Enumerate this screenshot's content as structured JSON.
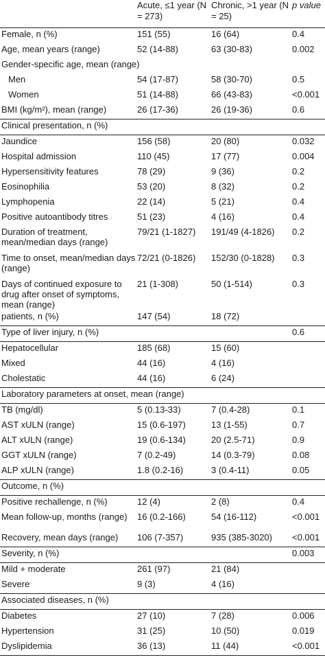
{
  "header": {
    "col1": "",
    "col2": "Acute, ≤1 year (N = 273)",
    "col3": "Chronic, >1 year (N = 25)",
    "col4": "p value"
  },
  "rows": [
    {
      "label": "Female, n (%)",
      "acute": "151 (55)",
      "chronic": "16 (64)",
      "p": "0.4"
    },
    {
      "label": "Age, mean years (range)",
      "acute": "52 (14-88)",
      "chronic": "63 (30-83)",
      "p": "0.002"
    },
    {
      "label": "Gender-specific age, mean (range)",
      "acute": "",
      "chronic": "",
      "p": ""
    },
    {
      "label": "Men",
      "acute": "54 (17-87)",
      "chronic": "58 (30-70)",
      "p": "0.5"
    },
    {
      "label": "Women",
      "acute": "51 (14-88)",
      "chronic": "66 (43-83)",
      "p": "<0.001"
    },
    {
      "label": "BMI (kg/m²), mean (range)",
      "acute": "26 (17-36)",
      "chronic": "26 (19-36)",
      "p": "0.6"
    },
    {
      "label": "Clinical presentation, n (%)",
      "acute": "",
      "chronic": "",
      "p": ""
    },
    {
      "label": "Jaundice",
      "acute": "156 (58)",
      "chronic": "20 (80)",
      "p": "0.032"
    },
    {
      "label": "Hospital admission",
      "acute": "110 (45)",
      "chronic": "17 (77)",
      "p": "0.004"
    },
    {
      "label": "Hypersensitivity features",
      "acute": "78 (29)",
      "chronic": "9 (36)",
      "p": "0.2"
    },
    {
      "label": "Eosinophilia",
      "acute": "53 (20)",
      "chronic": "8 (32)",
      "p": "0.2"
    },
    {
      "label": "Lymphopenia",
      "acute": "22 (14)",
      "chronic": "5 (21)",
      "p": "0.4"
    },
    {
      "label": "Positive autoantibody titres",
      "acute": "51 (23)",
      "chronic": "4 (16)",
      "p": "0.4"
    },
    {
      "label": "Duration of treatment, mean/median days (range)",
      "acute": "79/21 (1-1827)",
      "chronic": "191/49 (4-1826)",
      "p": "0.2"
    },
    {
      "label": "Time to onset, mean/median days (range)",
      "acute": "72/21 (0-1826)",
      "chronic": "152/30 (0-1828)",
      "p": "0.3"
    },
    {
      "label": "Days of continued exposure to drug after onset of symptoms, mean (range)",
      "acute": "21 (1-308)",
      "chronic": "50 (1-514)",
      "p": "0.3"
    },
    {
      "label": "patients, n (%)",
      "acute": "147 (54)",
      "chronic": "18 (72)",
      "p": ""
    },
    {
      "label": "Type of liver injury, n (%)",
      "acute": "",
      "chronic": "",
      "p": "0.6"
    },
    {
      "label": "Hepatocellular",
      "acute": "185 (68)",
      "chronic": "15 (60)",
      "p": ""
    },
    {
      "label": "Mixed",
      "acute": "44 (16)",
      "chronic": "4 (16)",
      "p": ""
    },
    {
      "label": "Cholestatic",
      "acute": "44 (16)",
      "chronic": "6 (24)",
      "p": ""
    },
    {
      "label": "Laboratory parameters at onset, mean (range)",
      "acute": "",
      "chronic": "",
      "p": ""
    },
    {
      "label": "TB (mg/dl)",
      "acute": "5 (0.13-33)",
      "chronic": "7 (0.4-28)",
      "p": "0.1"
    },
    {
      "label": "AST xULN (range)",
      "acute": "15 (0.6-197)",
      "chronic": "13 (1-55)",
      "p": "0.7"
    },
    {
      "label": "ALT xULN (range)",
      "acute": "19 (0.6-134)",
      "chronic": "20 (2.5-71)",
      "p": "0.9"
    },
    {
      "label": "GGT xULN (range)",
      "acute": "7 (0.2-49)",
      "chronic": "14 (0.3-79)",
      "p": "0.08"
    },
    {
      "label": "ALP xULN (range)",
      "acute": "1.8 (0.2-16)",
      "chronic": "3 (0.4-11)",
      "p": "0.05"
    },
    {
      "label": "Outcome, n (%)",
      "acute": "",
      "chronic": "",
      "p": ""
    },
    {
      "label": "Positive rechallenge, n (%)",
      "acute": "12 (4)",
      "chronic": "2 (8)",
      "p": "0.4"
    },
    {
      "label": "Mean follow-up, months (range)",
      "acute": "16 (0.2-166)",
      "chronic": "54 (16-112)",
      "p": "<0.001"
    },
    {
      "label": "Recovery, mean days (range)",
      "acute": "106 (7-357)",
      "chronic": "935 (385-3020)",
      "p": "<0.001"
    },
    {
      "label": "Severity, n (%)",
      "acute": "",
      "chronic": "",
      "p": "0.003"
    },
    {
      "label": "Mild + moderate",
      "acute": "261 (97)",
      "chronic": "21 (84)",
      "p": ""
    },
    {
      "label": "Severe",
      "acute": "9 (3)",
      "chronic": "4 (16)",
      "p": ""
    },
    {
      "label": "Associated diseases, n (%)",
      "acute": "",
      "chronic": "",
      "p": ""
    },
    {
      "label": "Diabetes",
      "acute": "27 (10)",
      "chronic": "7 (28)",
      "p": "0.006"
    },
    {
      "label": "Hypertension",
      "acute": "31 (25)",
      "chronic": "10 (50)",
      "p": "0.019"
    },
    {
      "label": "Dyslipidemia",
      "acute": "36 (13)",
      "chronic": "11 (44)",
      "p": "<0.001"
    }
  ]
}
